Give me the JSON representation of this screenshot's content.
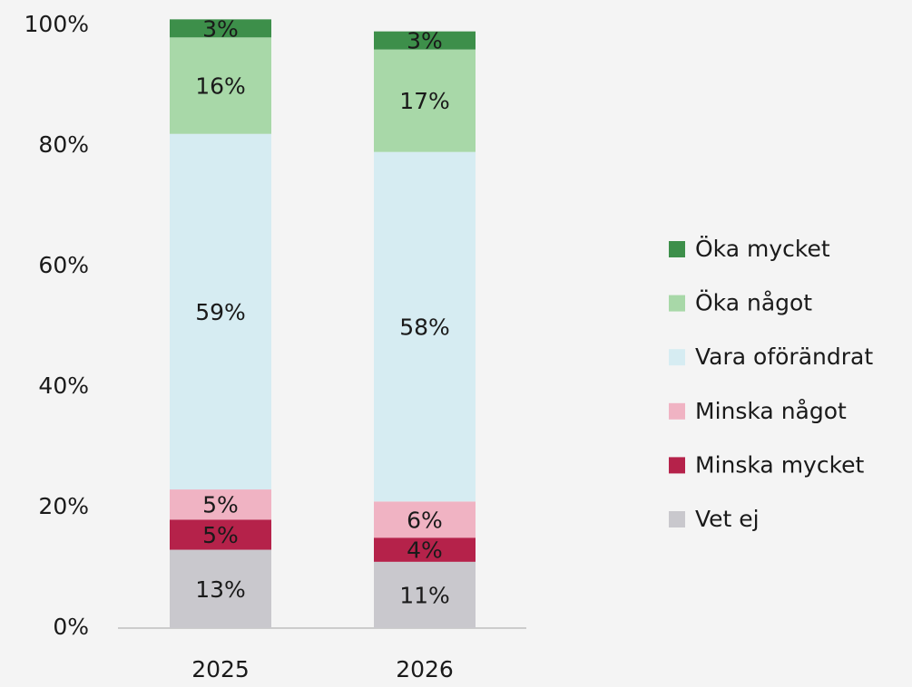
{
  "chart_data": {
    "type": "stacked_bar",
    "categories": [
      "2025",
      "2026"
    ],
    "series": [
      {
        "name": "Vet ej",
        "color": "#c9c8cd",
        "values": [
          13,
          11
        ],
        "value_labels": [
          "13%",
          "11%"
        ]
      },
      {
        "name": "Minska mycket",
        "color": "#b5224a",
        "values": [
          5,
          4
        ],
        "value_labels": [
          "5%",
          "4%"
        ]
      },
      {
        "name": "Minska något",
        "color": "#f0b3c3",
        "values": [
          5,
          6
        ],
        "value_labels": [
          "5%",
          "6%"
        ]
      },
      {
        "name": "Vara oförändrat",
        "color": "#d6ecf2",
        "values": [
          59,
          58
        ],
        "value_labels": [
          "59%",
          "58%"
        ]
      },
      {
        "name": "Öka något",
        "color": "#a8d8a8",
        "values": [
          16,
          17
        ],
        "value_labels": [
          "16%",
          "17%"
        ]
      },
      {
        "name": "Öka mycket",
        "color": "#3d8f4a",
        "values": [
          3,
          3
        ],
        "value_labels": [
          "3%",
          "3%"
        ]
      }
    ],
    "ylim": [
      0,
      100
    ],
    "yticks": [
      {
        "value": 0,
        "label": "0%"
      },
      {
        "value": 20,
        "label": "20%"
      },
      {
        "value": 40,
        "label": "40%"
      },
      {
        "value": 60,
        "label": "60%"
      },
      {
        "value": 80,
        "label": "80%"
      },
      {
        "value": 100,
        "label": "100%"
      }
    ],
    "grid": false,
    "legend": "right"
  }
}
